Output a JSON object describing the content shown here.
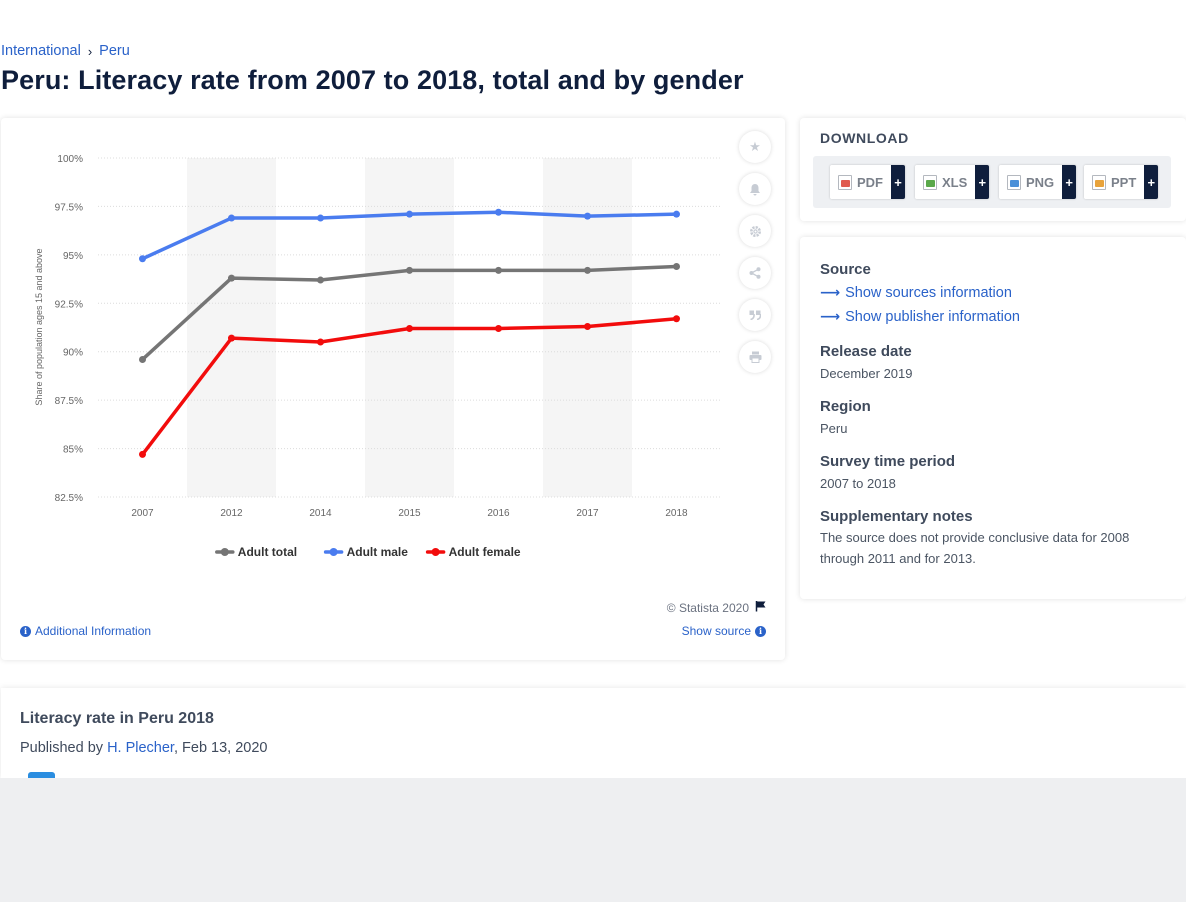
{
  "breadcrumb": {
    "item1": "International",
    "sep": "›",
    "item2": "Peru"
  },
  "page_title": "Peru: Literacy rate from 2007 to 2018, total and by gender",
  "chart_toolbar": [
    "star-icon",
    "bell-icon",
    "gear-icon",
    "share-icon",
    "quote-icon",
    "print-icon"
  ],
  "chart_footer": {
    "copyright": "© Statista 2020",
    "additional_info": "Additional Information",
    "show_source": "Show source"
  },
  "chart_data": {
    "type": "line",
    "categories": [
      "2007",
      "2012",
      "2014",
      "2015",
      "2016",
      "2017",
      "2018"
    ],
    "ylabel": "Share of population ages 15 and above",
    "ylim": [
      82.5,
      100
    ],
    "yticks": [
      "100%",
      "97.5%",
      "95%",
      "92.5%",
      "90%",
      "87.5%",
      "85%",
      "82.5%"
    ],
    "ytick_values": [
      100,
      97.5,
      95,
      92.5,
      90,
      87.5,
      85,
      82.5
    ],
    "grid": true,
    "legend_position": "bottom",
    "series": [
      {
        "name": "Adult total",
        "color": "#757575",
        "values": [
          89.6,
          93.8,
          93.7,
          94.2,
          94.2,
          94.2,
          94.4
        ]
      },
      {
        "name": "Adult male",
        "color": "#4a7cef",
        "values": [
          94.8,
          96.9,
          96.9,
          97.1,
          97.2,
          97.0,
          97.1
        ]
      },
      {
        "name": "Adult female",
        "color": "#f20c0c",
        "values": [
          84.7,
          90.7,
          90.5,
          91.2,
          91.2,
          91.3,
          91.7
        ]
      }
    ]
  },
  "download": {
    "heading": "DOWNLOAD",
    "plus": "+",
    "formats": [
      {
        "label": "PDF",
        "color": "#e05a4f"
      },
      {
        "label": "XLS",
        "color": "#5aa84a"
      },
      {
        "label": "PNG",
        "color": "#4a8fd8"
      },
      {
        "label": "PPT",
        "color": "#e8a33c"
      }
    ]
  },
  "info": {
    "source_label": "Source",
    "show_sources": "Show sources information",
    "show_publisher": "Show publisher information",
    "release_label": "Release date",
    "release_value": "December 2019",
    "region_label": "Region",
    "region_value": "Peru",
    "survey_label": "Survey time period",
    "survey_value": "2007 to 2018",
    "notes_label": "Supplementary notes",
    "notes_value": "The source does not provide conclusive data for 2008 through 2011 and for 2013."
  },
  "bottom": {
    "title": "Literacy rate in Peru 2018",
    "published_prefix": "Published by ",
    "author": "H. Plecher",
    "date": ", Feb 13, 2020"
  }
}
